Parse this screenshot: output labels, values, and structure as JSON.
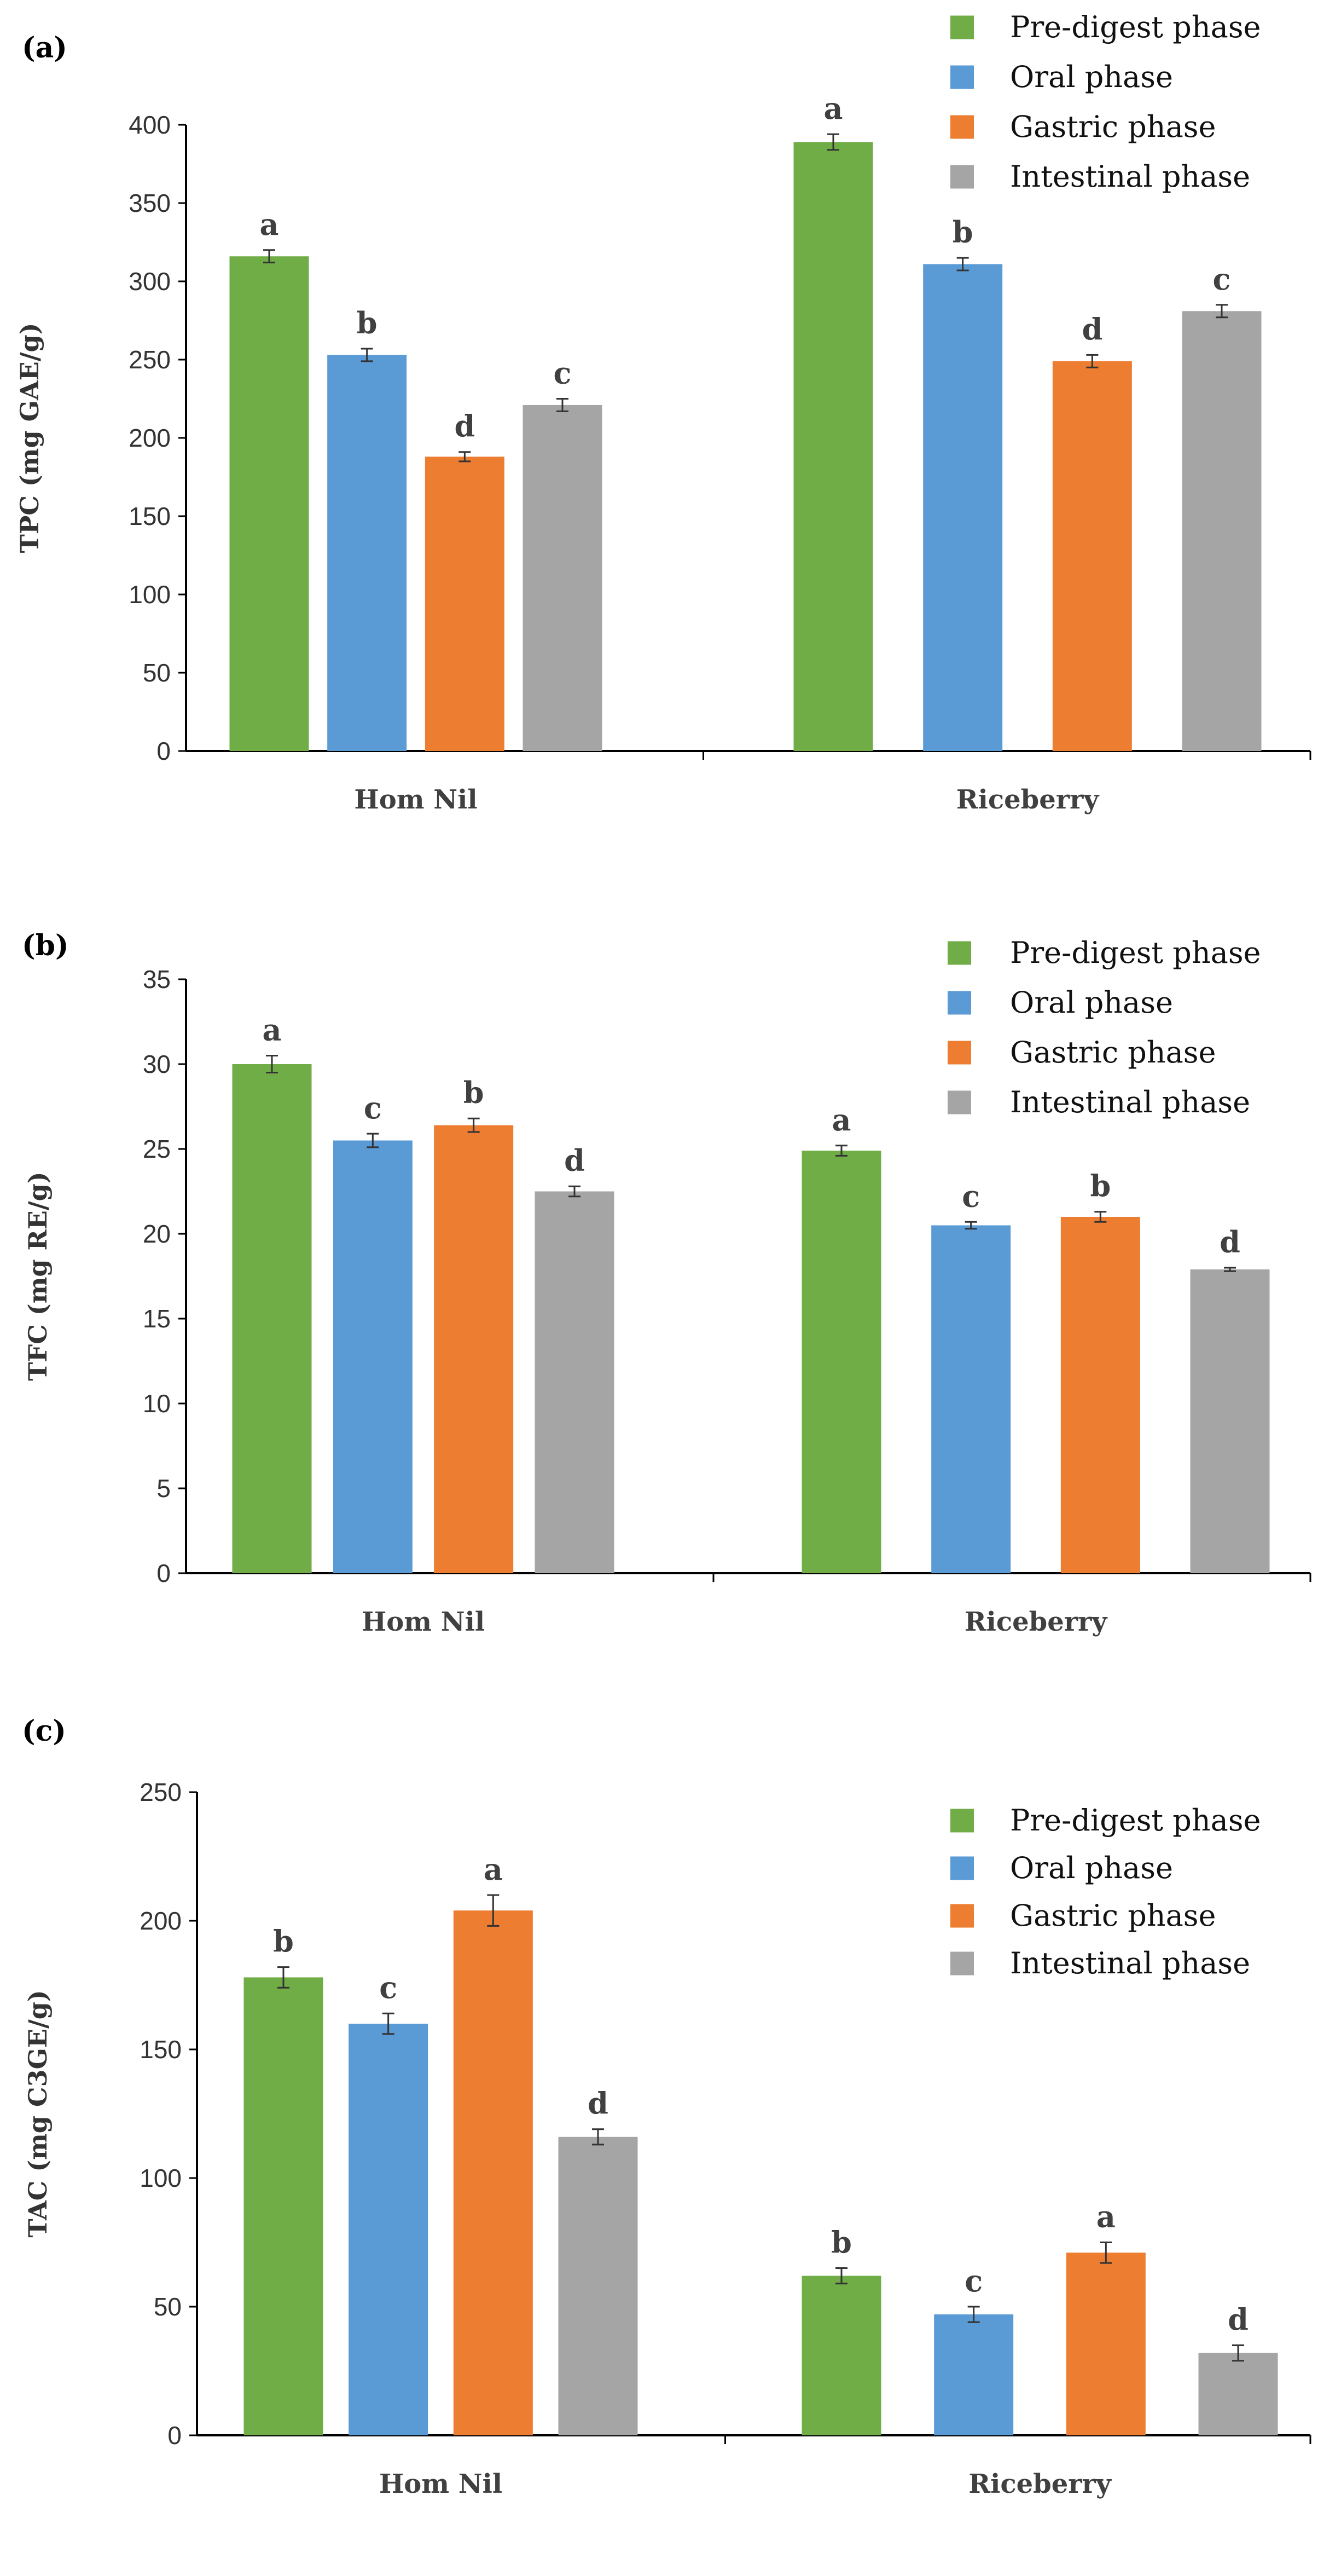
{
  "chart_data": [
    {
      "type": "bar",
      "panel_label": "(a)",
      "title": "",
      "xlabel": "",
      "ylabel": "TPC (mg GAE/g)",
      "ylim": [
        0,
        400
      ],
      "yticks": [
        0,
        50,
        100,
        150,
        200,
        250,
        300,
        350,
        400
      ],
      "categories": [
        "Hom Nil",
        "Riceberry"
      ],
      "legend_position": "top-right",
      "series": [
        {
          "name": "Pre-digest phase",
          "color": "#70ad47",
          "values": [
            316,
            389
          ],
          "errors": [
            4,
            5
          ],
          "letters": [
            "a",
            "a"
          ]
        },
        {
          "name": "Oral phase",
          "color": "#5b9bd5",
          "values": [
            253,
            311
          ],
          "errors": [
            4,
            4
          ],
          "letters": [
            "b",
            "b"
          ]
        },
        {
          "name": "Gastric phase",
          "color": "#ed7d31",
          "values": [
            188,
            249
          ],
          "errors": [
            3,
            4
          ],
          "letters": [
            "d",
            "d"
          ]
        },
        {
          "name": "Intestinal phase",
          "color": "#a5a5a5",
          "values": [
            221,
            281
          ],
          "errors": [
            4,
            4
          ],
          "letters": [
            "c",
            "c"
          ]
        }
      ]
    },
    {
      "type": "bar",
      "panel_label": "(b)",
      "title": "",
      "xlabel": "",
      "ylabel": "TFC (mg RE/g)",
      "ylim": [
        0,
        35
      ],
      "yticks": [
        0,
        5,
        10,
        15,
        20,
        25,
        30,
        35
      ],
      "categories": [
        "Hom Nil",
        "Riceberry"
      ],
      "legend_position": "top-right",
      "series": [
        {
          "name": "Pre-digest phase",
          "color": "#70ad47",
          "values": [
            30.0,
            24.9
          ],
          "errors": [
            0.5,
            0.3
          ],
          "letters": [
            "a",
            "a"
          ]
        },
        {
          "name": "Oral phase",
          "color": "#5b9bd5",
          "values": [
            25.5,
            20.5
          ],
          "errors": [
            0.4,
            0.2
          ],
          "letters": [
            "c",
            "c"
          ]
        },
        {
          "name": "Gastric phase",
          "color": "#ed7d31",
          "values": [
            26.4,
            21.0
          ],
          "errors": [
            0.4,
            0.3
          ],
          "letters": [
            "b",
            "b"
          ]
        },
        {
          "name": "Intestinal phase",
          "color": "#a5a5a5",
          "values": [
            22.5,
            17.9
          ],
          "errors": [
            0.3,
            0.1
          ],
          "letters": [
            "d",
            "d"
          ]
        }
      ]
    },
    {
      "type": "bar",
      "panel_label": "(c)",
      "title": "",
      "xlabel": "",
      "ylabel": "TAC (mg C3GE/g)",
      "ylim": [
        0,
        250
      ],
      "yticks": [
        0,
        50,
        100,
        150,
        200,
        250
      ],
      "categories": [
        "Hom Nil",
        "Riceberry"
      ],
      "legend_position": "top-right",
      "series": [
        {
          "name": "Pre-digest phase",
          "color": "#70ad47",
          "values": [
            178,
            62
          ],
          "errors": [
            4,
            3
          ],
          "letters": [
            "b",
            "b"
          ]
        },
        {
          "name": "Oral phase",
          "color": "#5b9bd5",
          "values": [
            160,
            47
          ],
          "errors": [
            4,
            3
          ],
          "letters": [
            "c",
            "c"
          ]
        },
        {
          "name": "Gastric phase",
          "color": "#ed7d31",
          "values": [
            204,
            71
          ],
          "errors": [
            6,
            4
          ],
          "letters": [
            "a",
            "a"
          ]
        },
        {
          "name": "Intestinal phase",
          "color": "#a5a5a5",
          "values": [
            116,
            32
          ],
          "errors": [
            3,
            3
          ],
          "letters": [
            "d",
            "d"
          ]
        }
      ]
    }
  ]
}
